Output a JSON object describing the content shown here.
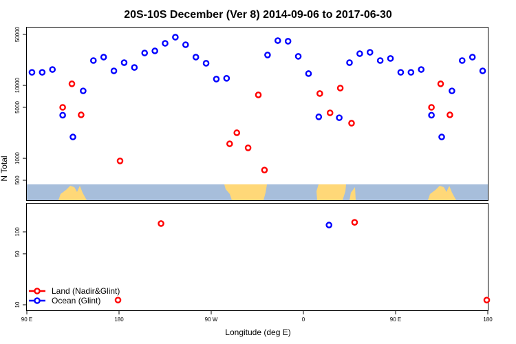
{
  "chart_data": {
    "type": "scatter",
    "title": "20S-10S December (Ver 8)   2014-09-06 to 2017-06-30",
    "xlabel": "Longitude (deg E)",
    "ylabel": "N Total",
    "xlim_deg_east": [
      90,
      540
    ],
    "x_ticks": [
      "90 E",
      "180",
      "90 W",
      "0",
      "90 E",
      "180"
    ],
    "x_tick_values": [
      90,
      180,
      270,
      360,
      450,
      540
    ],
    "top_panel": {
      "yscale": "log",
      "y_ticks": [
        "50000",
        "10000",
        "5000",
        "1000",
        "500"
      ],
      "y_tick_values": [
        50000,
        10000,
        5000,
        1000,
        500
      ]
    },
    "bottom_panel": {
      "yscale": "log",
      "y_ticks": [
        "100",
        "50",
        "10"
      ],
      "y_tick_values": [
        100,
        50,
        10
      ]
    },
    "legend": {
      "placement": "bottom-left",
      "entries": [
        "Land (Nadir&Glint)",
        "Ocean (Glint)"
      ]
    },
    "colors": {
      "land": "#ff0000",
      "ocean": "#0000ff",
      "map_ocean": "#a7bedb",
      "map_land": "#ffd878"
    },
    "series": [
      {
        "name": "Land (Nadir&Glint)",
        "color": "#ff0000",
        "points": [
          {
            "lon": 125,
            "n": 5000
          },
          {
            "lon": 134,
            "n": 10500
          },
          {
            "lon": 143,
            "n": 3940
          },
          {
            "lon": -179,
            "n": 920
          },
          {
            "lon": -72,
            "n": 1580
          },
          {
            "lon": -65,
            "n": 2240
          },
          {
            "lon": -54,
            "n": 1390
          },
          {
            "lon": -44,
            "n": 7400
          },
          {
            "lon": -38,
            "n": 690
          },
          {
            "lon": 16,
            "n": 7730
          },
          {
            "lon": 26,
            "n": 4200
          },
          {
            "lon": 36,
            "n": 9180
          },
          {
            "lon": 47,
            "n": 3030
          },
          {
            "lon": -139,
            "n": 130
          },
          {
            "lon": 50,
            "n": 135
          },
          {
            "lon": 179,
            "n": 11.6
          }
        ]
      },
      {
        "name": "Ocean (Glint)",
        "color": "#0000ff",
        "points": [
          {
            "lon": 95,
            "n": 15100
          },
          {
            "lon": 105,
            "n": 15100
          },
          {
            "lon": 115,
            "n": 16500
          },
          {
            "lon": 125,
            "n": 3900
          },
          {
            "lon": 135,
            "n": 1960
          },
          {
            "lon": 145,
            "n": 8400
          },
          {
            "lon": 155,
            "n": 21900
          },
          {
            "lon": 165,
            "n": 24400
          },
          {
            "lon": 175,
            "n": 15800
          },
          {
            "lon": -175,
            "n": 20500
          },
          {
            "lon": -165,
            "n": 17600
          },
          {
            "lon": -155,
            "n": 27800
          },
          {
            "lon": -145,
            "n": 29700
          },
          {
            "lon": -135,
            "n": 37700
          },
          {
            "lon": -125,
            "n": 45800
          },
          {
            "lon": -115,
            "n": 36100
          },
          {
            "lon": -105,
            "n": 24400
          },
          {
            "lon": -95,
            "n": 20100
          },
          {
            "lon": -85,
            "n": 12200
          },
          {
            "lon": -75,
            "n": 12500
          },
          {
            "lon": -35,
            "n": 26100
          },
          {
            "lon": -25,
            "n": 41100
          },
          {
            "lon": -15,
            "n": 40300
          },
          {
            "lon": -5,
            "n": 25000
          },
          {
            "lon": 5,
            "n": 14500
          },
          {
            "lon": 15,
            "n": 3700
          },
          {
            "lon": 35,
            "n": 3600
          },
          {
            "lon": 45,
            "n": 20500
          },
          {
            "lon": 55,
            "n": 27200
          },
          {
            "lon": 65,
            "n": 28400
          },
          {
            "lon": 75,
            "n": 21900
          },
          {
            "lon": 85,
            "n": 23400
          },
          {
            "lon": 25,
            "n": 124
          }
        ]
      }
    ]
  }
}
